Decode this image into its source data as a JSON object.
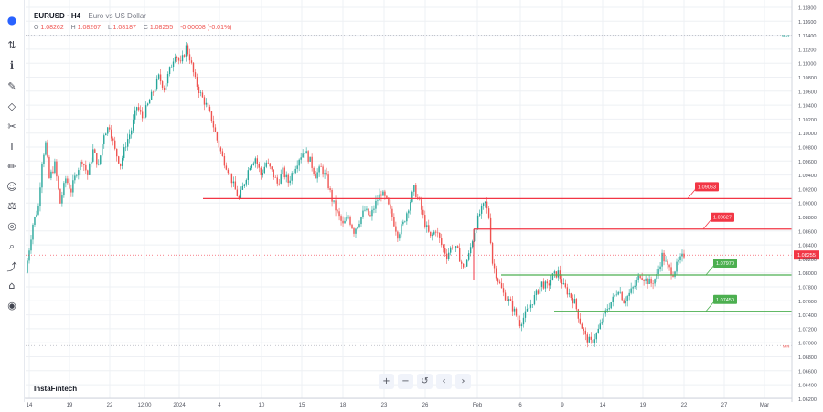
{
  "symbol": {
    "title": "EURUSD · H4",
    "description": "Euro vs US Dollar"
  },
  "ohlc": {
    "o_label": "O",
    "o": "1.08262",
    "h_label": "H",
    "h": "1.08267",
    "l_label": "L",
    "l": "1.08187",
    "c_label": "C",
    "c": "1.08255",
    "change": "-0.00008 (-0.01%)"
  },
  "brand": "InstaFintech",
  "colors": {
    "up": "#26a69a",
    "down": "#ef5350",
    "resistance": "#f23645",
    "support": "#4caf50",
    "price": "#f23645",
    "grid": "#eef0f4"
  },
  "toolbar_icons": [
    "cursor-icon",
    "trend-line-icon",
    "fib-icon",
    "pattern-icon",
    "prediction-icon",
    "geometric-shape-icon",
    "text-icon",
    "brush-icon",
    "emoji-icon",
    "measure-icon",
    "magnet-icon",
    "lock-draw-icon",
    "eye-icon",
    "trash-icon",
    "zoom-icon"
  ],
  "nav_buttons": [
    "+",
    "−",
    "↺",
    "‹",
    "›"
  ],
  "chart_data": {
    "type": "candlestick",
    "y_axis_ticks": [
      "1.11800",
      "1.11600",
      "1.11400",
      "1.11200",
      "1.11000",
      "1.10800",
      "1.10600",
      "1.10400",
      "1.10200",
      "1.10000",
      "1.09800",
      "1.09600",
      "1.09400",
      "1.09200",
      "1.09000",
      "1.08800",
      "1.08600",
      "1.08400",
      "1.08200",
      "1.08000",
      "1.07800",
      "1.07600",
      "1.07400",
      "1.07200",
      "1.07000",
      "1.06800",
      "1.06600",
      "1.06400",
      "1.06200"
    ],
    "x_axis_ticks": [
      "14",
      "19",
      "22",
      "12:00",
      "2024",
      "4",
      "10",
      "15",
      "18",
      "23",
      "26",
      "Feb",
      "6",
      "9",
      "14",
      "19",
      "22",
      "27",
      "Mar"
    ],
    "current_price": "1.08255",
    "markers": {
      "max_label": "MAX",
      "min_label": "MIN"
    },
    "levels": [
      {
        "name": "resistance-1",
        "label": "1.09063",
        "price": 1.09063,
        "kind": "resistance"
      },
      {
        "name": "resistance-2",
        "label": "1.08627",
        "price": 1.08627,
        "kind": "resistance"
      },
      {
        "name": "support-1",
        "label": "1.07970",
        "price": 1.0797,
        "kind": "support"
      },
      {
        "name": "support-2",
        "label": "1.07450",
        "price": 1.0745,
        "kind": "support"
      }
    ],
    "close_path": [
      [
        0,
        1.08
      ],
      [
        4,
        1.087
      ],
      [
        7,
        1.0895
      ],
      [
        9,
        1.096
      ],
      [
        11,
        1.0985
      ],
      [
        13,
        1.0935
      ],
      [
        16,
        1.0955
      ],
      [
        19,
        1.09
      ],
      [
        22,
        1.0935
      ],
      [
        25,
        1.0918
      ],
      [
        28,
        1.0945
      ],
      [
        31,
        1.0962
      ],
      [
        34,
        1.094
      ],
      [
        37,
        1.0975
      ],
      [
        40,
        1.0952
      ],
      [
        43,
        1.1
      ],
      [
        46,
        1.101
      ],
      [
        49,
        1.0975
      ],
      [
        52,
        1.0955
      ],
      [
        55,
        1.0985
      ],
      [
        58,
        1.1005
      ],
      [
        61,
        1.1038
      ],
      [
        64,
        1.1022
      ],
      [
        67,
        1.104
      ],
      [
        70,
        1.106
      ],
      [
        73,
        1.108
      ],
      [
        76,
        1.1065
      ],
      [
        79,
        1.109
      ],
      [
        82,
        1.1115
      ],
      [
        85,
        1.1098
      ],
      [
        88,
        1.1123
      ],
      [
        90,
        1.1108
      ],
      [
        93,
        1.1075
      ],
      [
        96,
        1.1055
      ],
      [
        99,
        1.104
      ],
      [
        102,
        1.102
      ],
      [
        105,
        1.099
      ],
      [
        108,
        1.0965
      ],
      [
        111,
        1.0948
      ],
      [
        114,
        1.0925
      ],
      [
        117,
        1.0905
      ],
      [
        120,
        1.093
      ],
      [
        123,
        1.0955
      ],
      [
        126,
        1.0965
      ],
      [
        129,
        1.094
      ],
      [
        132,
        1.0958
      ],
      [
        135,
        1.0945
      ],
      [
        138,
        1.0928
      ],
      [
        141,
        1.0945
      ],
      [
        144,
        1.093
      ],
      [
        147,
        1.0948
      ],
      [
        150,
        1.0965
      ],
      [
        153,
        1.0975
      ],
      [
        156,
        1.096
      ],
      [
        159,
        1.094
      ],
      [
        162,
        1.095
      ],
      [
        165,
        1.0935
      ],
      [
        168,
        1.0905
      ],
      [
        171,
        1.0885
      ],
      [
        174,
        1.0868
      ],
      [
        177,
        1.088
      ],
      [
        180,
        1.086
      ],
      [
        183,
        1.0875
      ],
      [
        186,
        1.089
      ],
      [
        189,
        1.088
      ],
      [
        192,
        1.09
      ],
      [
        195,
        1.0915
      ],
      [
        198,
        1.0902
      ],
      [
        201,
        1.088
      ],
      [
        204,
        1.0855
      ],
      [
        207,
        1.087
      ],
      [
        210,
        1.0895
      ],
      [
        213,
        1.092
      ],
      [
        216,
        1.09
      ],
      [
        219,
        1.087
      ],
      [
        222,
        1.085
      ],
      [
        225,
        1.0862
      ],
      [
        228,
        1.084
      ],
      [
        231,
        1.0825
      ],
      [
        234,
        1.084
      ],
      [
        237,
        1.083
      ],
      [
        240,
        1.0805
      ],
      [
        243,
        1.0825
      ],
      [
        246,
        1.086
      ],
      [
        249,
        1.0885
      ],
      [
        252,
        1.09
      ],
      [
        254,
        1.088
      ],
      [
        256,
        1.0815
      ],
      [
        259,
        1.079
      ],
      [
        262,
        1.077
      ],
      [
        265,
        1.076
      ],
      [
        268,
        1.0745
      ],
      [
        271,
        1.0728
      ],
      [
        274,
        1.074
      ],
      [
        277,
        1.0755
      ],
      [
        280,
        1.077
      ],
      [
        283,
        1.0785
      ],
      [
        286,
        1.078
      ],
      [
        289,
        1.0795
      ],
      [
        292,
        1.08
      ],
      [
        295,
        1.078
      ],
      [
        298,
        1.077
      ],
      [
        301,
        1.0758
      ],
      [
        304,
        1.073
      ],
      [
        307,
        1.0708
      ],
      [
        310,
        1.07
      ],
      [
        313,
        1.0712
      ],
      [
        316,
        1.073
      ],
      [
        319,
        1.075
      ],
      [
        322,
        1.0762
      ],
      [
        325,
        1.0778
      ],
      [
        328,
        1.076
      ],
      [
        331,
        1.077
      ],
      [
        334,
        1.0782
      ],
      [
        337,
        1.0798
      ],
      [
        340,
        1.079
      ],
      [
        343,
        1.0785
      ],
      [
        346,
        1.0795
      ],
      [
        349,
        1.0825
      ],
      [
        352,
        1.0808
      ],
      [
        355,
        1.08
      ],
      [
        358,
        1.0815
      ],
      [
        361,
        1.0826
      ]
    ]
  }
}
